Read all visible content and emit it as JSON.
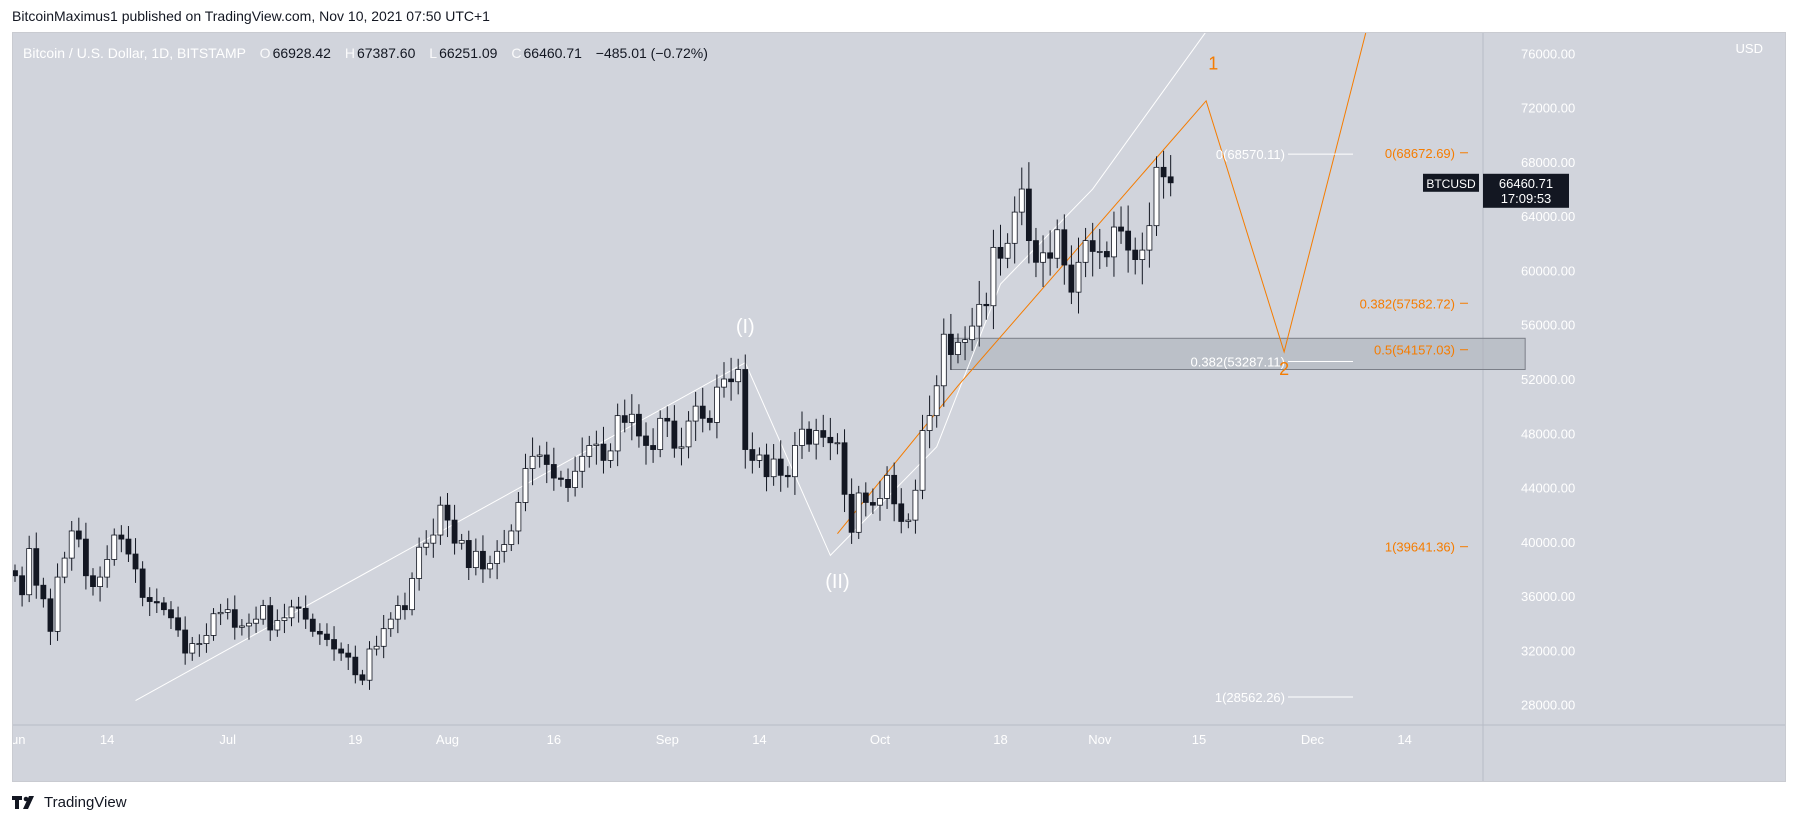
{
  "header": {
    "published_by": "BitcoinMaximus1 published on TradingView.com, Nov 10, 2021 07:50 UTC+1"
  },
  "footer": {
    "brand": "TradingView"
  },
  "symbol_bar": {
    "title": "Bitcoin / U.S. Dollar, 1D, BITSTAMP",
    "open_label": "O",
    "open": "66928.42",
    "high_label": "H",
    "high": "67387.60",
    "low_label": "L",
    "low": "66251.09",
    "close_label": "C",
    "close": "66460.71",
    "change": "−485.01 (−0.72%)"
  },
  "price_tag": {
    "symbol": "BTCUSD",
    "price": "66460.71",
    "countdown": "17:09:53"
  },
  "colors": {
    "background": "#d1d4dc",
    "orange": "#f57c00",
    "white": "#ffffff",
    "candle_dark": "#131722"
  },
  "chart_data": {
    "type": "candlestick",
    "currency_label": "USD",
    "y_ticks": [
      "76000.00",
      "72000.00",
      "68000.00",
      "64000.00",
      "60000.00",
      "56000.00",
      "52000.00",
      "48000.00",
      "44000.00",
      "40000.00",
      "36000.00",
      "32000.00",
      "28000.00"
    ],
    "ylim": [
      26500,
      77500
    ],
    "x_ticks": [
      {
        "label": "Jun",
        "day": 0
      },
      {
        "label": "14",
        "day": 13
      },
      {
        "label": "Jul",
        "day": 30
      },
      {
        "label": "19",
        "day": 48
      },
      {
        "label": "Aug",
        "day": 61
      },
      {
        "label": "16",
        "day": 76
      },
      {
        "label": "Sep",
        "day": 92
      },
      {
        "label": "14",
        "day": 105
      },
      {
        "label": "Oct",
        "day": 122
      },
      {
        "label": "18",
        "day": 139
      },
      {
        "label": "Nov",
        "day": 153
      },
      {
        "label": "15",
        "day": 167
      },
      {
        "label": "Dec",
        "day": 183
      },
      {
        "label": "14",
        "day": 196
      }
    ],
    "closes": [
      37500,
      36100,
      39500,
      36800,
      35800,
      33400,
      37400,
      38800,
      40800,
      40200,
      37500,
      36700,
      37400,
      38700,
      40500,
      40200,
      39100,
      38000,
      35900,
      35600,
      35500,
      35000,
      34400,
      33500,
      31800,
      32500,
      32500,
      33100,
      34700,
      34800,
      35000,
      33700,
      33800,
      34000,
      34300,
      35300,
      33500,
      34200,
      34400,
      35200,
      35100,
      34300,
      33400,
      33200,
      32800,
      32100,
      31800,
      31500,
      30200,
      29800,
      32100,
      32300,
      33600,
      34300,
      35300,
      35000,
      37300,
      39600,
      39900,
      40500,
      42700,
      41600,
      39900,
      40100,
      38100,
      39300,
      38000,
      38400,
      39300,
      39800,
      40800,
      42900,
      45400,
      46300,
      46400,
      45700,
      44700,
      44600,
      44000,
      45200,
      46300,
      47100,
      47200,
      46000,
      46700,
      49300,
      48800,
      49400,
      47800,
      47100,
      46800,
      49100,
      48900,
      46900,
      47000,
      48900,
      50000,
      49100,
      48800,
      51400,
      52000,
      51800,
      52700,
      46800,
      46000,
      46400,
      44800,
      46100,
      44900,
      44800,
      47100,
      48300,
      47200,
      48200,
      47700,
      47300,
      47300,
      43500,
      40700,
      43600,
      42900,
      42700,
      43200,
      44900,
      42800,
      41500,
      41600,
      43800,
      48200,
      49300,
      51500,
      55300,
      53800,
      54700,
      54900,
      55900,
      57500,
      57400,
      61700,
      60900,
      62000,
      64300,
      66000,
      62200,
      60600,
      61300,
      60900,
      63000,
      60400,
      58400,
      60600,
      62200,
      61400,
      61400,
      61000,
      63200,
      62900,
      61500,
      60800,
      61500,
      63300,
      67600,
      66900,
      66460.71
    ],
    "levels_white": [
      {
        "label": "0(68570.11)",
        "value": 68570.11
      },
      {
        "label": "0.382(53287.11)",
        "value": 53287.11
      },
      {
        "label": "1(28562.26)",
        "value": 28562.26
      }
    ],
    "levels_orange": [
      {
        "label": "0(68672.69)",
        "value": 68672.69
      },
      {
        "label": "0.382(57582.72)",
        "value": 57582.72
      },
      {
        "label": "0.5(54157.03)",
        "value": 54157.03
      },
      {
        "label": "1(39641.36)",
        "value": 39641.36
      }
    ],
    "support_zone": {
      "from_day": 132,
      "to_day": 213,
      "low": 52700,
      "high": 55000
    },
    "white_wave": [
      {
        "day": 17,
        "price": 28300
      },
      {
        "day": 103,
        "price": 53200
      },
      {
        "day": 115,
        "price": 39000
      },
      {
        "day": 130,
        "price": 47000
      },
      {
        "day": 139,
        "price": 59000
      },
      {
        "day": 152,
        "price": 66000
      },
      {
        "day": 172,
        "price": 80500
      }
    ],
    "orange_wave": [
      {
        "day": 116,
        "price": 40600
      },
      {
        "day": 133,
        "price": 51500
      },
      {
        "day": 168,
        "price": 72500
      },
      {
        "day": 179,
        "price": 54000
      },
      {
        "day": 191,
        "price": 78500
      }
    ],
    "labels_white": [
      {
        "text": "(I)",
        "day": 103,
        "price": 55400
      },
      {
        "text": "(II)",
        "day": 116,
        "price": 36600
      }
    ],
    "labels_orange": [
      {
        "text": "1",
        "day": 169,
        "price": 74800
      },
      {
        "text": "2",
        "day": 179,
        "price": 52300
      }
    ]
  }
}
